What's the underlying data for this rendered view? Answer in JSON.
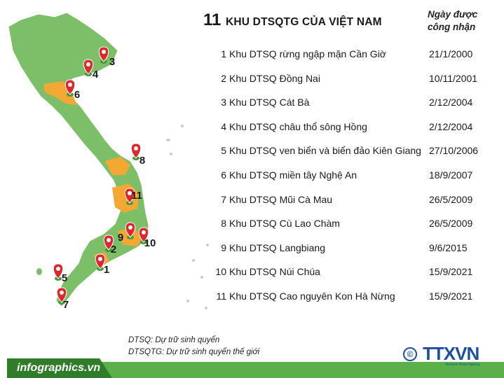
{
  "title": {
    "number": "11",
    "text": "KHU DTSQTG CỦA VIỆT NAM"
  },
  "column_header": {
    "line1": "Ngày được",
    "line2": "công nhận"
  },
  "reserves": [
    {
      "n": "1",
      "name": "Khu DTSQ rừng ngập mặn Cần Giờ",
      "date": "21/1/2000"
    },
    {
      "n": "2",
      "name": "Khu DTSQ Đồng Nai",
      "date": "10/11/2001"
    },
    {
      "n": "3",
      "name": "Khu DTSQ Cát Bà",
      "date": "2/12/2004"
    },
    {
      "n": "4",
      "name": "Khu DTSQ châu thổ sông Hồng",
      "date": "2/12/2004"
    },
    {
      "n": "5",
      "name": "Khu DTSQ ven biển và biển đảo Kiên Giang",
      "date": "27/10/2006"
    },
    {
      "n": "6",
      "name": "Khu DTSQ miền tây Nghệ An",
      "date": "18/9/2007"
    },
    {
      "n": "7",
      "name": "Khu DTSQ Mũi Cà Mau",
      "date": "26/5/2009"
    },
    {
      "n": "8",
      "name": "Khu DTSQ Cù Lao Chàm",
      "date": "26/5/2009"
    },
    {
      "n": "9",
      "name": "Khu DTSQ Langbiang",
      "date": "9/6/2015"
    },
    {
      "n": "10",
      "name": "Khu DTSQ Núi Chúa",
      "date": "15/9/2021"
    },
    {
      "n": "11",
      "name": "Khu DTSQ Cao nguyên Kon Hà Nừng",
      "date": "15/9/2021"
    }
  ],
  "map_markers": [
    "3",
    "4",
    "6",
    "8",
    "11",
    "9",
    "10",
    "2",
    "1",
    "5",
    "7"
  ],
  "notes": {
    "line1": "DTSQ: Dự trữ sinh quyển",
    "line2": "DTSQTG: Dự trữ sinh quyển thế giới"
  },
  "footer": {
    "site": "infographics.vn"
  },
  "logo": {
    "symbol": "©",
    "brand": "TTXVN",
    "sub": "Vietnam News Agency"
  },
  "colors": {
    "land": "#7dbf68",
    "highlight": "#f5a733",
    "marker": "#e0262b",
    "footer_green": "#5bb049",
    "footer_dark": "#2f7d2a",
    "logo_blue": "#1d4fa3"
  }
}
